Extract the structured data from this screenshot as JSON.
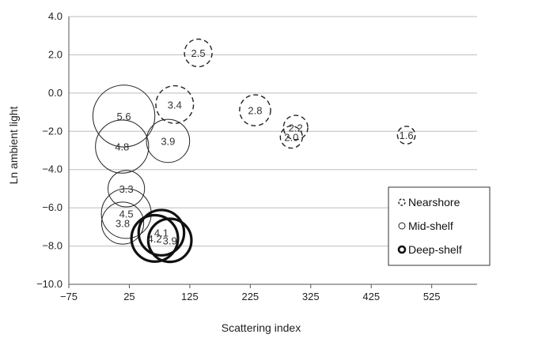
{
  "chart_data": {
    "type": "scatter",
    "xlabel": "Scattering index",
    "ylabel": "Ln ambient light",
    "xlim": [
      -75,
      600
    ],
    "ylim": [
      -10,
      4
    ],
    "x_ticks": [
      -75,
      25,
      125,
      225,
      325,
      425,
      525
    ],
    "x_tick_labels": [
      "−75",
      "25",
      "125",
      "225",
      "325",
      "425",
      "525"
    ],
    "y_ticks": [
      4,
      2,
      0,
      -2,
      -4,
      -6,
      -8,
      -10
    ],
    "y_tick_labels": [
      "4.0",
      "2.0",
      "0.0",
      "−2.0",
      "−4.0",
      "−6.0",
      "−8.0",
      "−10.0"
    ],
    "grid": "horizontal",
    "legend_position": "lower-right",
    "series": [
      {
        "name": "Nearshore",
        "style": "dashed",
        "points": [
          {
            "x": 139,
            "y": 2.1,
            "size": 2.5,
            "label": "2.5"
          },
          {
            "x": 100,
            "y": -0.6,
            "size": 3.4,
            "label": "3.4"
          },
          {
            "x": 233,
            "y": -0.9,
            "size": 2.8,
            "label": "2.8"
          },
          {
            "x": 300,
            "y": -1.8,
            "size": 2.2,
            "label": "2.2"
          },
          {
            "x": 293,
            "y": -2.3,
            "size": 2.0,
            "label": "2.0"
          },
          {
            "x": 483,
            "y": -2.2,
            "size": 1.6,
            "label": "1.6"
          }
        ]
      },
      {
        "name": "Mid-shelf",
        "style": "thin",
        "points": [
          {
            "x": 16,
            "y": -1.2,
            "size": 5.6,
            "label": "5.6"
          },
          {
            "x": 13,
            "y": -2.8,
            "size": 4.8,
            "label": "4.8"
          },
          {
            "x": 89,
            "y": -2.5,
            "size": 3.9,
            "label": "3.9"
          },
          {
            "x": 20,
            "y": -5.0,
            "size": 3.3,
            "label": "3.3"
          },
          {
            "x": 20,
            "y": -6.3,
            "size": 4.5,
            "label": "4.5"
          },
          {
            "x": 14,
            "y": -6.8,
            "size": 3.8,
            "label": "3.8"
          }
        ]
      },
      {
        "name": "Deep-shelf",
        "style": "thick",
        "points": [
          {
            "x": 78,
            "y": -7.3,
            "size": 4.1,
            "label": "4.1"
          },
          {
            "x": 67,
            "y": -7.6,
            "size": 4.2,
            "label": "4.2"
          },
          {
            "x": 92,
            "y": -7.7,
            "size": 3.9,
            "label": "3.9"
          }
        ]
      }
    ]
  }
}
